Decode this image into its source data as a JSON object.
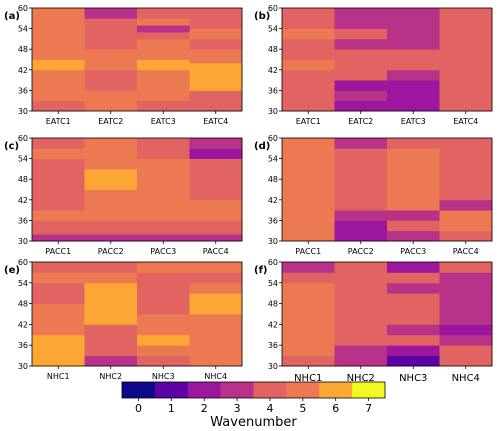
{
  "colorbar": {
    "label": "Wavenumber",
    "ticks": [
      "0",
      "1",
      "2",
      "3",
      "4",
      "5",
      "6",
      "7"
    ],
    "colors": [
      "#0d0887",
      "#5c01a6",
      "#9c179e",
      "#b83289",
      "#e16462",
      "#ed7953",
      "#fca636",
      "#f0f921"
    ]
  },
  "chart_data": [
    {
      "type": "heatmap",
      "panel_label": "(a)",
      "categories": [
        "EATC1",
        "EATC2",
        "EATC3",
        "EATC4"
      ],
      "yticks": [
        "30",
        "36",
        "42",
        "48",
        "54",
        "60"
      ],
      "ylim": [
        30,
        60
      ],
      "columns": [
        [
          {
            "from": 30,
            "to": 33,
            "value": 4
          },
          {
            "from": 33,
            "to": 42,
            "value": 5
          },
          {
            "from": 42,
            "to": 45,
            "value": 6
          },
          {
            "from": 45,
            "to": 60,
            "value": 5
          }
        ],
        [
          {
            "from": 30,
            "to": 36,
            "value": 5
          },
          {
            "from": 36,
            "to": 42,
            "value": 4
          },
          {
            "from": 42,
            "to": 48,
            "value": 5
          },
          {
            "from": 48,
            "to": 57,
            "value": 4
          },
          {
            "from": 57,
            "to": 60,
            "value": 3
          }
        ],
        [
          {
            "from": 30,
            "to": 33,
            "value": 4
          },
          {
            "from": 33,
            "to": 42,
            "value": 5
          },
          {
            "from": 42,
            "to": 45,
            "value": 6
          },
          {
            "from": 45,
            "to": 51,
            "value": 5
          },
          {
            "from": 51,
            "to": 53,
            "value": 4
          },
          {
            "from": 53,
            "to": 55,
            "value": 3
          },
          {
            "from": 55,
            "to": 57,
            "value": 5
          },
          {
            "from": 57,
            "to": 60,
            "value": 4
          }
        ],
        [
          {
            "from": 30,
            "to": 36,
            "value": 4
          },
          {
            "from": 36,
            "to": 44,
            "value": 6
          },
          {
            "from": 44,
            "to": 48,
            "value": 5
          },
          {
            "from": 48,
            "to": 51,
            "value": 4
          },
          {
            "from": 51,
            "to": 54,
            "value": 5
          },
          {
            "from": 54,
            "to": 57,
            "value": 4
          },
          {
            "from": 57,
            "to": 60,
            "value": 4
          }
        ]
      ]
    },
    {
      "type": "heatmap",
      "panel_label": "(b)",
      "categories": [
        "EATC1",
        "EATC2",
        "EATC3",
        "EATC4"
      ],
      "yticks": [
        "30",
        "36",
        "42",
        "48",
        "54",
        "60"
      ],
      "ylim": [
        30,
        60
      ],
      "columns": [
        [
          {
            "from": 30,
            "to": 42,
            "value": 4
          },
          {
            "from": 42,
            "to": 45,
            "value": 5
          },
          {
            "from": 45,
            "to": 48,
            "value": 4
          },
          {
            "from": 48,
            "to": 51,
            "value": 4
          },
          {
            "from": 51,
            "to": 54,
            "value": 5
          },
          {
            "from": 54,
            "to": 60,
            "value": 4
          }
        ],
        [
          {
            "from": 30,
            "to": 33,
            "value": 2
          },
          {
            "from": 33,
            "to": 36,
            "value": 3
          },
          {
            "from": 36,
            "to": 39,
            "value": 2
          },
          {
            "from": 39,
            "to": 48,
            "value": 4
          },
          {
            "from": 48,
            "to": 51,
            "value": 3
          },
          {
            "from": 51,
            "to": 54,
            "value": 4
          },
          {
            "from": 54,
            "to": 60,
            "value": 3
          }
        ],
        [
          {
            "from": 30,
            "to": 39,
            "value": 2
          },
          {
            "from": 39,
            "to": 42,
            "value": 3
          },
          {
            "from": 42,
            "to": 48,
            "value": 4
          },
          {
            "from": 48,
            "to": 60,
            "value": 3
          }
        ],
        [
          {
            "from": 30,
            "to": 60,
            "value": 4
          }
        ]
      ]
    },
    {
      "type": "heatmap",
      "panel_label": "(c)",
      "categories": [
        "PACC1",
        "PACC2",
        "PACC3",
        "PACC4"
      ],
      "yticks": [
        "30",
        "36",
        "42",
        "48",
        "54",
        "60"
      ],
      "ylim": [
        30,
        60
      ],
      "columns": [
        [
          {
            "from": 30,
            "to": 32,
            "value": 3
          },
          {
            "from": 32,
            "to": 36,
            "value": 4
          },
          {
            "from": 36,
            "to": 39,
            "value": 5
          },
          {
            "from": 39,
            "to": 54,
            "value": 4
          },
          {
            "from": 54,
            "to": 57,
            "value": 5
          },
          {
            "from": 57,
            "to": 60,
            "value": 4
          }
        ],
        [
          {
            "from": 30,
            "to": 32,
            "value": 3
          },
          {
            "from": 32,
            "to": 36,
            "value": 4
          },
          {
            "from": 36,
            "to": 45,
            "value": 5
          },
          {
            "from": 45,
            "to": 51,
            "value": 6
          },
          {
            "from": 51,
            "to": 60,
            "value": 5
          }
        ],
        [
          {
            "from": 30,
            "to": 32,
            "value": 3
          },
          {
            "from": 32,
            "to": 36,
            "value": 4
          },
          {
            "from": 36,
            "to": 54,
            "value": 5
          },
          {
            "from": 54,
            "to": 60,
            "value": 4
          }
        ],
        [
          {
            "from": 30,
            "to": 32,
            "value": 3
          },
          {
            "from": 32,
            "to": 36,
            "value": 4
          },
          {
            "from": 36,
            "to": 42,
            "value": 5
          },
          {
            "from": 42,
            "to": 54,
            "value": 4
          },
          {
            "from": 54,
            "to": 57,
            "value": 2
          },
          {
            "from": 57,
            "to": 60,
            "value": 3
          }
        ]
      ]
    },
    {
      "type": "heatmap",
      "panel_label": "(d)",
      "categories": [
        "PACC1",
        "PACC2",
        "PACC3",
        "PACC4"
      ],
      "yticks": [
        "30",
        "36",
        "42",
        "48",
        "54",
        "60"
      ],
      "ylim": [
        30,
        60
      ],
      "columns": [
        [
          {
            "from": 30,
            "to": 60,
            "value": 5
          }
        ],
        [
          {
            "from": 30,
            "to": 36,
            "value": 2
          },
          {
            "from": 36,
            "to": 39,
            "value": 3
          },
          {
            "from": 39,
            "to": 42,
            "value": 4
          },
          {
            "from": 42,
            "to": 48,
            "value": 4
          },
          {
            "from": 48,
            "to": 54,
            "value": 4
          },
          {
            "from": 54,
            "to": 57,
            "value": 4
          },
          {
            "from": 57,
            "to": 60,
            "value": 3
          }
        ],
        [
          {
            "from": 30,
            "to": 33,
            "value": 3
          },
          {
            "from": 33,
            "to": 36,
            "value": 4
          },
          {
            "from": 36,
            "to": 39,
            "value": 3
          },
          {
            "from": 39,
            "to": 57,
            "value": 5
          },
          {
            "from": 57,
            "to": 60,
            "value": 4
          }
        ],
        [
          {
            "from": 30,
            "to": 33,
            "value": 4
          },
          {
            "from": 33,
            "to": 39,
            "value": 5
          },
          {
            "from": 39,
            "to": 42,
            "value": 3
          },
          {
            "from": 42,
            "to": 60,
            "value": 4
          }
        ]
      ]
    },
    {
      "type": "heatmap",
      "panel_label": "(e)",
      "categories": [
        "NHC1",
        "NHC2",
        "NHC3",
        "NHC4"
      ],
      "yticks": [
        "30",
        "36",
        "42",
        "48",
        "54",
        "60"
      ],
      "ylim": [
        30,
        60
      ],
      "columns": [
        [
          {
            "from": 30,
            "to": 39,
            "value": 6
          },
          {
            "from": 39,
            "to": 48,
            "value": 5
          },
          {
            "from": 48,
            "to": 54,
            "value": 4
          },
          {
            "from": 54,
            "to": 57,
            "value": 5
          },
          {
            "from": 57,
            "to": 60,
            "value": 4
          }
        ],
        [
          {
            "from": 30,
            "to": 33,
            "value": 3
          },
          {
            "from": 33,
            "to": 42,
            "value": 4
          },
          {
            "from": 42,
            "to": 54,
            "value": 6
          },
          {
            "from": 54,
            "to": 57,
            "value": 5
          },
          {
            "from": 57,
            "to": 60,
            "value": 4
          }
        ],
        [
          {
            "from": 30,
            "to": 33,
            "value": 4
          },
          {
            "from": 33,
            "to": 36,
            "value": 5
          },
          {
            "from": 36,
            "to": 39,
            "value": 6
          },
          {
            "from": 39,
            "to": 45,
            "value": 5
          },
          {
            "from": 45,
            "to": 57,
            "value": 4
          },
          {
            "from": 57,
            "to": 60,
            "value": 5
          }
        ],
        [
          {
            "from": 30,
            "to": 45,
            "value": 5
          },
          {
            "from": 45,
            "to": 51,
            "value": 6
          },
          {
            "from": 51,
            "to": 54,
            "value": 5
          },
          {
            "from": 54,
            "to": 57,
            "value": 4
          },
          {
            "from": 57,
            "to": 60,
            "value": 5
          }
        ]
      ]
    },
    {
      "type": "heatmap",
      "panel_label": "(f)",
      "categories": [
        "NHC1",
        "NHC2",
        "NHC3",
        "NHC4"
      ],
      "yticks": [
        "30",
        "36",
        "42",
        "48",
        "54",
        "60"
      ],
      "ylim": [
        30,
        60
      ],
      "columns": [
        [
          {
            "from": 30,
            "to": 33,
            "value": 4
          },
          {
            "from": 33,
            "to": 54,
            "value": 5
          },
          {
            "from": 54,
            "to": 57,
            "value": 4
          },
          {
            "from": 57,
            "to": 60,
            "value": 3
          }
        ],
        [
          {
            "from": 30,
            "to": 36,
            "value": 3
          },
          {
            "from": 36,
            "to": 60,
            "value": 4
          }
        ],
        [
          {
            "from": 30,
            "to": 33,
            "value": 1
          },
          {
            "from": 33,
            "to": 36,
            "value": 2
          },
          {
            "from": 36,
            "to": 39,
            "value": 4
          },
          {
            "from": 39,
            "to": 42,
            "value": 3
          },
          {
            "from": 42,
            "to": 51,
            "value": 4
          },
          {
            "from": 51,
            "to": 54,
            "value": 3
          },
          {
            "from": 54,
            "to": 57,
            "value": 4
          },
          {
            "from": 57,
            "to": 60,
            "value": 2
          }
        ],
        [
          {
            "from": 30,
            "to": 36,
            "value": 4
          },
          {
            "from": 36,
            "to": 39,
            "value": 3
          },
          {
            "from": 39,
            "to": 42,
            "value": 2
          },
          {
            "from": 42,
            "to": 57,
            "value": 3
          },
          {
            "from": 57,
            "to": 60,
            "value": 4
          }
        ]
      ]
    }
  ]
}
